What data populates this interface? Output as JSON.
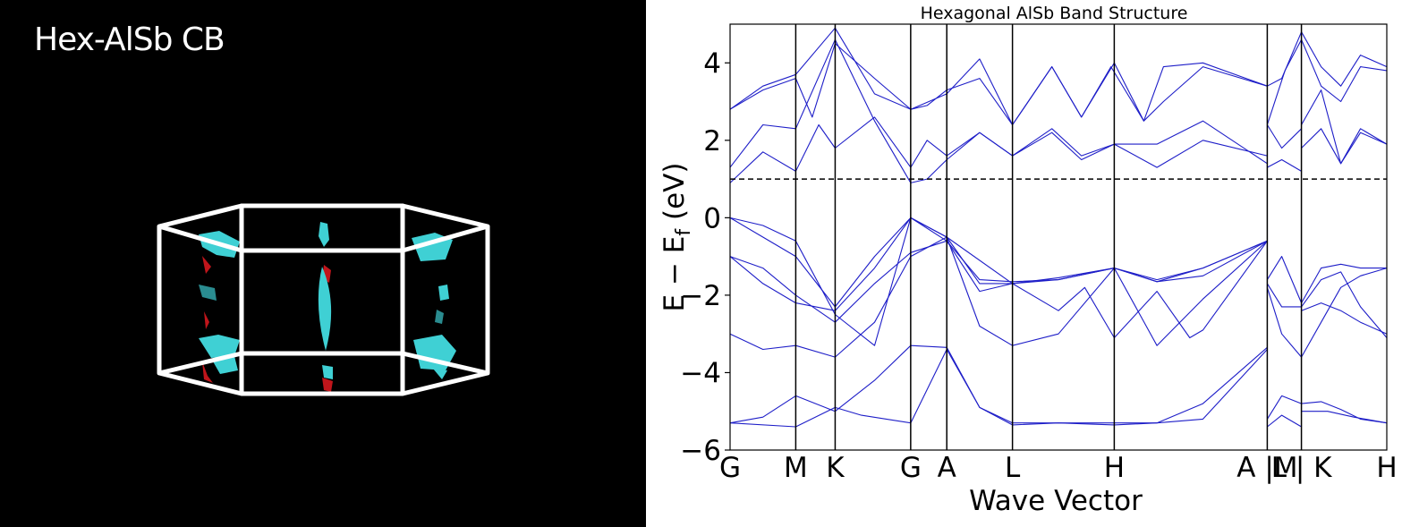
{
  "fermi_panel": {
    "title": "Hex-AlSb CB",
    "background": "#000000",
    "frame_color": "#ffffff",
    "surface_color": "#3fd0d4",
    "surface_back_color": "#c0151b"
  },
  "chart_data": {
    "type": "line",
    "title": "Hexagonal AlSb Band Structure",
    "xlabel": "Wave Vector",
    "ylabel": "E − E",
    "ylabel_subscript": "f",
    "ylabel_unit": " (eV)",
    "ylim": [
      -6,
      5
    ],
    "yticks": [
      {
        "value": -6,
        "label": "−6"
      },
      {
        "value": -4,
        "label": "−4"
      },
      {
        "value": -2,
        "label": "−2"
      },
      {
        "value": 0,
        "label": "0"
      },
      {
        "value": 2,
        "label": "2"
      },
      {
        "value": 4,
        "label": "4"
      }
    ],
    "fermi_reference": 1.0,
    "line_color": "#1e1ec8",
    "kpoints": [
      {
        "label": "G",
        "k": 0.0
      },
      {
        "label": "M",
        "k": 0.1
      },
      {
        "label": "K",
        "k": 0.16
      },
      {
        "label": "G",
        "k": 0.275
      },
      {
        "label": "A",
        "k": 0.33
      },
      {
        "label": "L",
        "k": 0.43
      },
      {
        "label": "H",
        "k": 0.585
      },
      {
        "label": "A |M",
        "k": 0.818
      },
      {
        "label": "L | K",
        "k": 0.87
      },
      {
        "label": "H",
        "k": 1.0
      }
    ],
    "series": [
      {
        "x": [
          0,
          0.1,
          0.16,
          0.2,
          0.275,
          0.33,
          0.38,
          0.43,
          0.5,
          0.585,
          0.65,
          0.72,
          0.818
        ],
        "y": [
          -5.3,
          -5.4,
          -4.9,
          -5.1,
          -5.3,
          -3.4,
          -4.9,
          -5.3,
          -5.3,
          -5.3,
          -5.3,
          -5.2,
          -3.4
        ]
      },
      {
        "x": [
          0,
          0.05,
          0.1,
          0.16,
          0.22,
          0.275,
          0.33,
          0.38,
          0.43,
          0.5,
          0.585,
          0.65,
          0.72,
          0.818
        ],
        "y": [
          -5.3,
          -5.15,
          -4.6,
          -5.0,
          -4.2,
          -3.3,
          -3.35,
          -4.9,
          -5.35,
          -5.3,
          -5.35,
          -5.3,
          -4.8,
          -3.35
        ]
      },
      {
        "x": [
          0,
          0.05,
          0.1,
          0.16,
          0.22,
          0.275,
          0.33,
          0.38,
          0.43,
          0.5,
          0.54,
          0.585,
          0.65,
          0.7,
          0.72,
          0.818
        ],
        "y": [
          -3.0,
          -3.4,
          -3.3,
          -3.6,
          -2.7,
          -1.0,
          -0.5,
          -1.7,
          -1.7,
          -2.4,
          -1.8,
          -3.1,
          -1.9,
          -3.1,
          -2.9,
          -0.6
        ]
      },
      {
        "x": [
          0,
          0.05,
          0.1,
          0.16,
          0.22,
          0.275,
          0.33,
          0.38,
          0.43,
          0.5,
          0.585,
          0.65,
          0.72,
          0.818
        ],
        "y": [
          -1.0,
          -1.3,
          -2.0,
          -2.7,
          -1.7,
          -0.9,
          -0.6,
          -1.9,
          -1.7,
          -1.6,
          -1.3,
          -1.65,
          -1.5,
          -0.6
        ]
      },
      {
        "x": [
          0,
          0.05,
          0.1,
          0.16,
          0.22,
          0.275,
          0.33,
          0.43,
          0.5,
          0.585,
          0.65,
          0.72,
          0.818
        ],
        "y": [
          -1.0,
          -1.7,
          -2.2,
          -2.4,
          -1.3,
          0.0,
          -0.5,
          -1.7,
          -1.55,
          -1.3,
          -1.65,
          -1.3,
          -0.6
        ]
      },
      {
        "x": [
          0,
          0.05,
          0.1,
          0.16,
          0.22,
          0.275,
          0.33,
          0.38,
          0.43,
          0.5,
          0.585,
          0.65,
          0.72,
          0.818
        ],
        "y": [
          0.0,
          -0.5,
          -1.0,
          -2.3,
          -1.0,
          0.0,
          -0.6,
          -1.6,
          -1.65,
          -1.6,
          -1.3,
          -1.6,
          -1.3,
          -0.6
        ]
      },
      {
        "x": [
          0,
          0.05,
          0.1,
          0.16,
          0.22,
          0.275,
          0.33,
          0.38,
          0.43,
          0.5,
          0.585,
          0.65,
          0.72,
          0.818
        ],
        "y": [
          0.0,
          -0.2,
          -0.6,
          -2.5,
          -3.3,
          0.0,
          -0.5,
          -2.8,
          -3.3,
          -3.0,
          -1.3,
          -3.3,
          -2.1,
          -0.6
        ]
      },
      {
        "x": [
          0,
          0.05,
          0.1,
          0.135,
          0.16,
          0.22,
          0.275,
          0.3,
          0.33,
          0.38,
          0.43,
          0.49,
          0.535,
          0.585,
          0.65,
          0.72,
          0.818
        ],
        "y": [
          0.9,
          1.7,
          1.2,
          2.4,
          1.8,
          2.6,
          1.3,
          2.0,
          1.6,
          2.2,
          1.6,
          2.2,
          1.5,
          1.9,
          1.3,
          2.0,
          1.6
        ]
      },
      {
        "x": [
          0,
          0.05,
          0.1,
          0.16,
          0.22,
          0.275,
          0.3,
          0.33,
          0.38,
          0.43,
          0.49,
          0.535,
          0.585,
          0.65,
          0.72,
          0.818
        ],
        "y": [
          1.3,
          2.4,
          2.3,
          4.6,
          2.5,
          0.9,
          1.0,
          1.5,
          2.2,
          1.6,
          2.3,
          1.6,
          1.9,
          1.9,
          2.5,
          1.4
        ]
      },
      {
        "x": [
          0,
          0.05,
          0.1,
          0.125,
          0.16,
          0.22,
          0.275,
          0.3,
          0.33,
          0.38,
          0.43,
          0.49,
          0.535,
          0.58,
          0.63,
          0.66,
          0.72,
          0.818
        ],
        "y": [
          2.8,
          3.3,
          3.6,
          2.6,
          4.5,
          3.6,
          2.8,
          2.9,
          3.3,
          3.6,
          2.4,
          3.9,
          2.6,
          3.9,
          2.5,
          3.0,
          3.9,
          3.4
        ]
      },
      {
        "x": [
          0,
          0.05,
          0.1,
          0.16,
          0.22,
          0.275,
          0.33,
          0.38,
          0.43,
          0.49,
          0.535,
          0.585,
          0.63,
          0.66,
          0.72,
          0.818
        ],
        "y": [
          2.8,
          3.4,
          3.7,
          4.9,
          3.2,
          2.8,
          3.2,
          4.1,
          2.4,
          3.9,
          2.6,
          4.0,
          2.5,
          3.9,
          4.0,
          3.4
        ]
      },
      {
        "x": [
          0.818,
          0.84,
          0.87
        ],
        "y": [
          -5.4,
          -5.1,
          -5.4
        ]
      },
      {
        "x": [
          0.818,
          0.84,
          0.87
        ],
        "y": [
          -5.2,
          -4.6,
          -4.8
        ]
      },
      {
        "x": [
          0.818,
          0.84,
          0.87
        ],
        "y": [
          -1.6,
          -1.0,
          -2.2
        ]
      },
      {
        "x": [
          0.818,
          0.84,
          0.87
        ],
        "y": [
          -1.7,
          -2.3,
          -2.3
        ]
      },
      {
        "x": [
          0.818,
          0.84,
          0.87
        ],
        "y": [
          -1.8,
          -3.0,
          -3.6
        ]
      },
      {
        "x": [
          0.818,
          0.84,
          0.87
        ],
        "y": [
          1.3,
          1.5,
          1.2
        ]
      },
      {
        "x": [
          0.818,
          0.84,
          0.87
        ],
        "y": [
          2.4,
          1.8,
          2.3
        ]
      },
      {
        "x": [
          0.818,
          0.845,
          0.87
        ],
        "y": [
          2.4,
          3.8,
          4.6
        ]
      },
      {
        "x": [
          0.818,
          0.84,
          0.87
        ],
        "y": [
          3.4,
          3.6,
          4.8
        ]
      },
      {
        "x": [
          0.87,
          0.9,
          0.93,
          0.96,
          1.0
        ],
        "y": [
          -4.8,
          -4.75,
          -4.95,
          -5.2,
          -5.3
        ]
      },
      {
        "x": [
          0.87,
          0.91,
          0.95,
          1.0
        ],
        "y": [
          -5.0,
          -5.0,
          -5.15,
          -5.3
        ]
      },
      {
        "x": [
          0.87,
          0.9,
          0.93,
          0.96,
          1.0
        ],
        "y": [
          -2.2,
          -1.3,
          -1.2,
          -1.3,
          -1.3
        ]
      },
      {
        "x": [
          0.87,
          0.9,
          0.93,
          0.96,
          1.0
        ],
        "y": [
          -2.3,
          -1.6,
          -1.4,
          -2.3,
          -3.1
        ]
      },
      {
        "x": [
          0.87,
          0.9,
          0.93,
          0.96,
          1.0
        ],
        "y": [
          -3.6,
          -2.7,
          -1.8,
          -1.5,
          -1.3
        ]
      },
      {
        "x": [
          0.87,
          0.9,
          0.93,
          0.96,
          1.0
        ],
        "y": [
          -2.4,
          -2.2,
          -2.4,
          -2.7,
          -3.0
        ]
      },
      {
        "x": [
          0.87,
          0.9,
          0.93,
          0.96,
          1.0
        ],
        "y": [
          1.8,
          2.3,
          1.4,
          2.2,
          1.9
        ]
      },
      {
        "x": [
          0.87,
          0.9,
          0.93,
          0.96,
          1.0
        ],
        "y": [
          2.4,
          3.3,
          1.4,
          2.3,
          1.9
        ]
      },
      {
        "x": [
          0.87,
          0.9,
          0.93,
          0.96,
          1.0
        ],
        "y": [
          4.6,
          3.4,
          3.0,
          3.9,
          3.8
        ]
      },
      {
        "x": [
          0.87,
          0.9,
          0.93,
          0.96,
          1.0
        ],
        "y": [
          4.8,
          3.9,
          3.4,
          4.2,
          3.9
        ]
      }
    ]
  }
}
